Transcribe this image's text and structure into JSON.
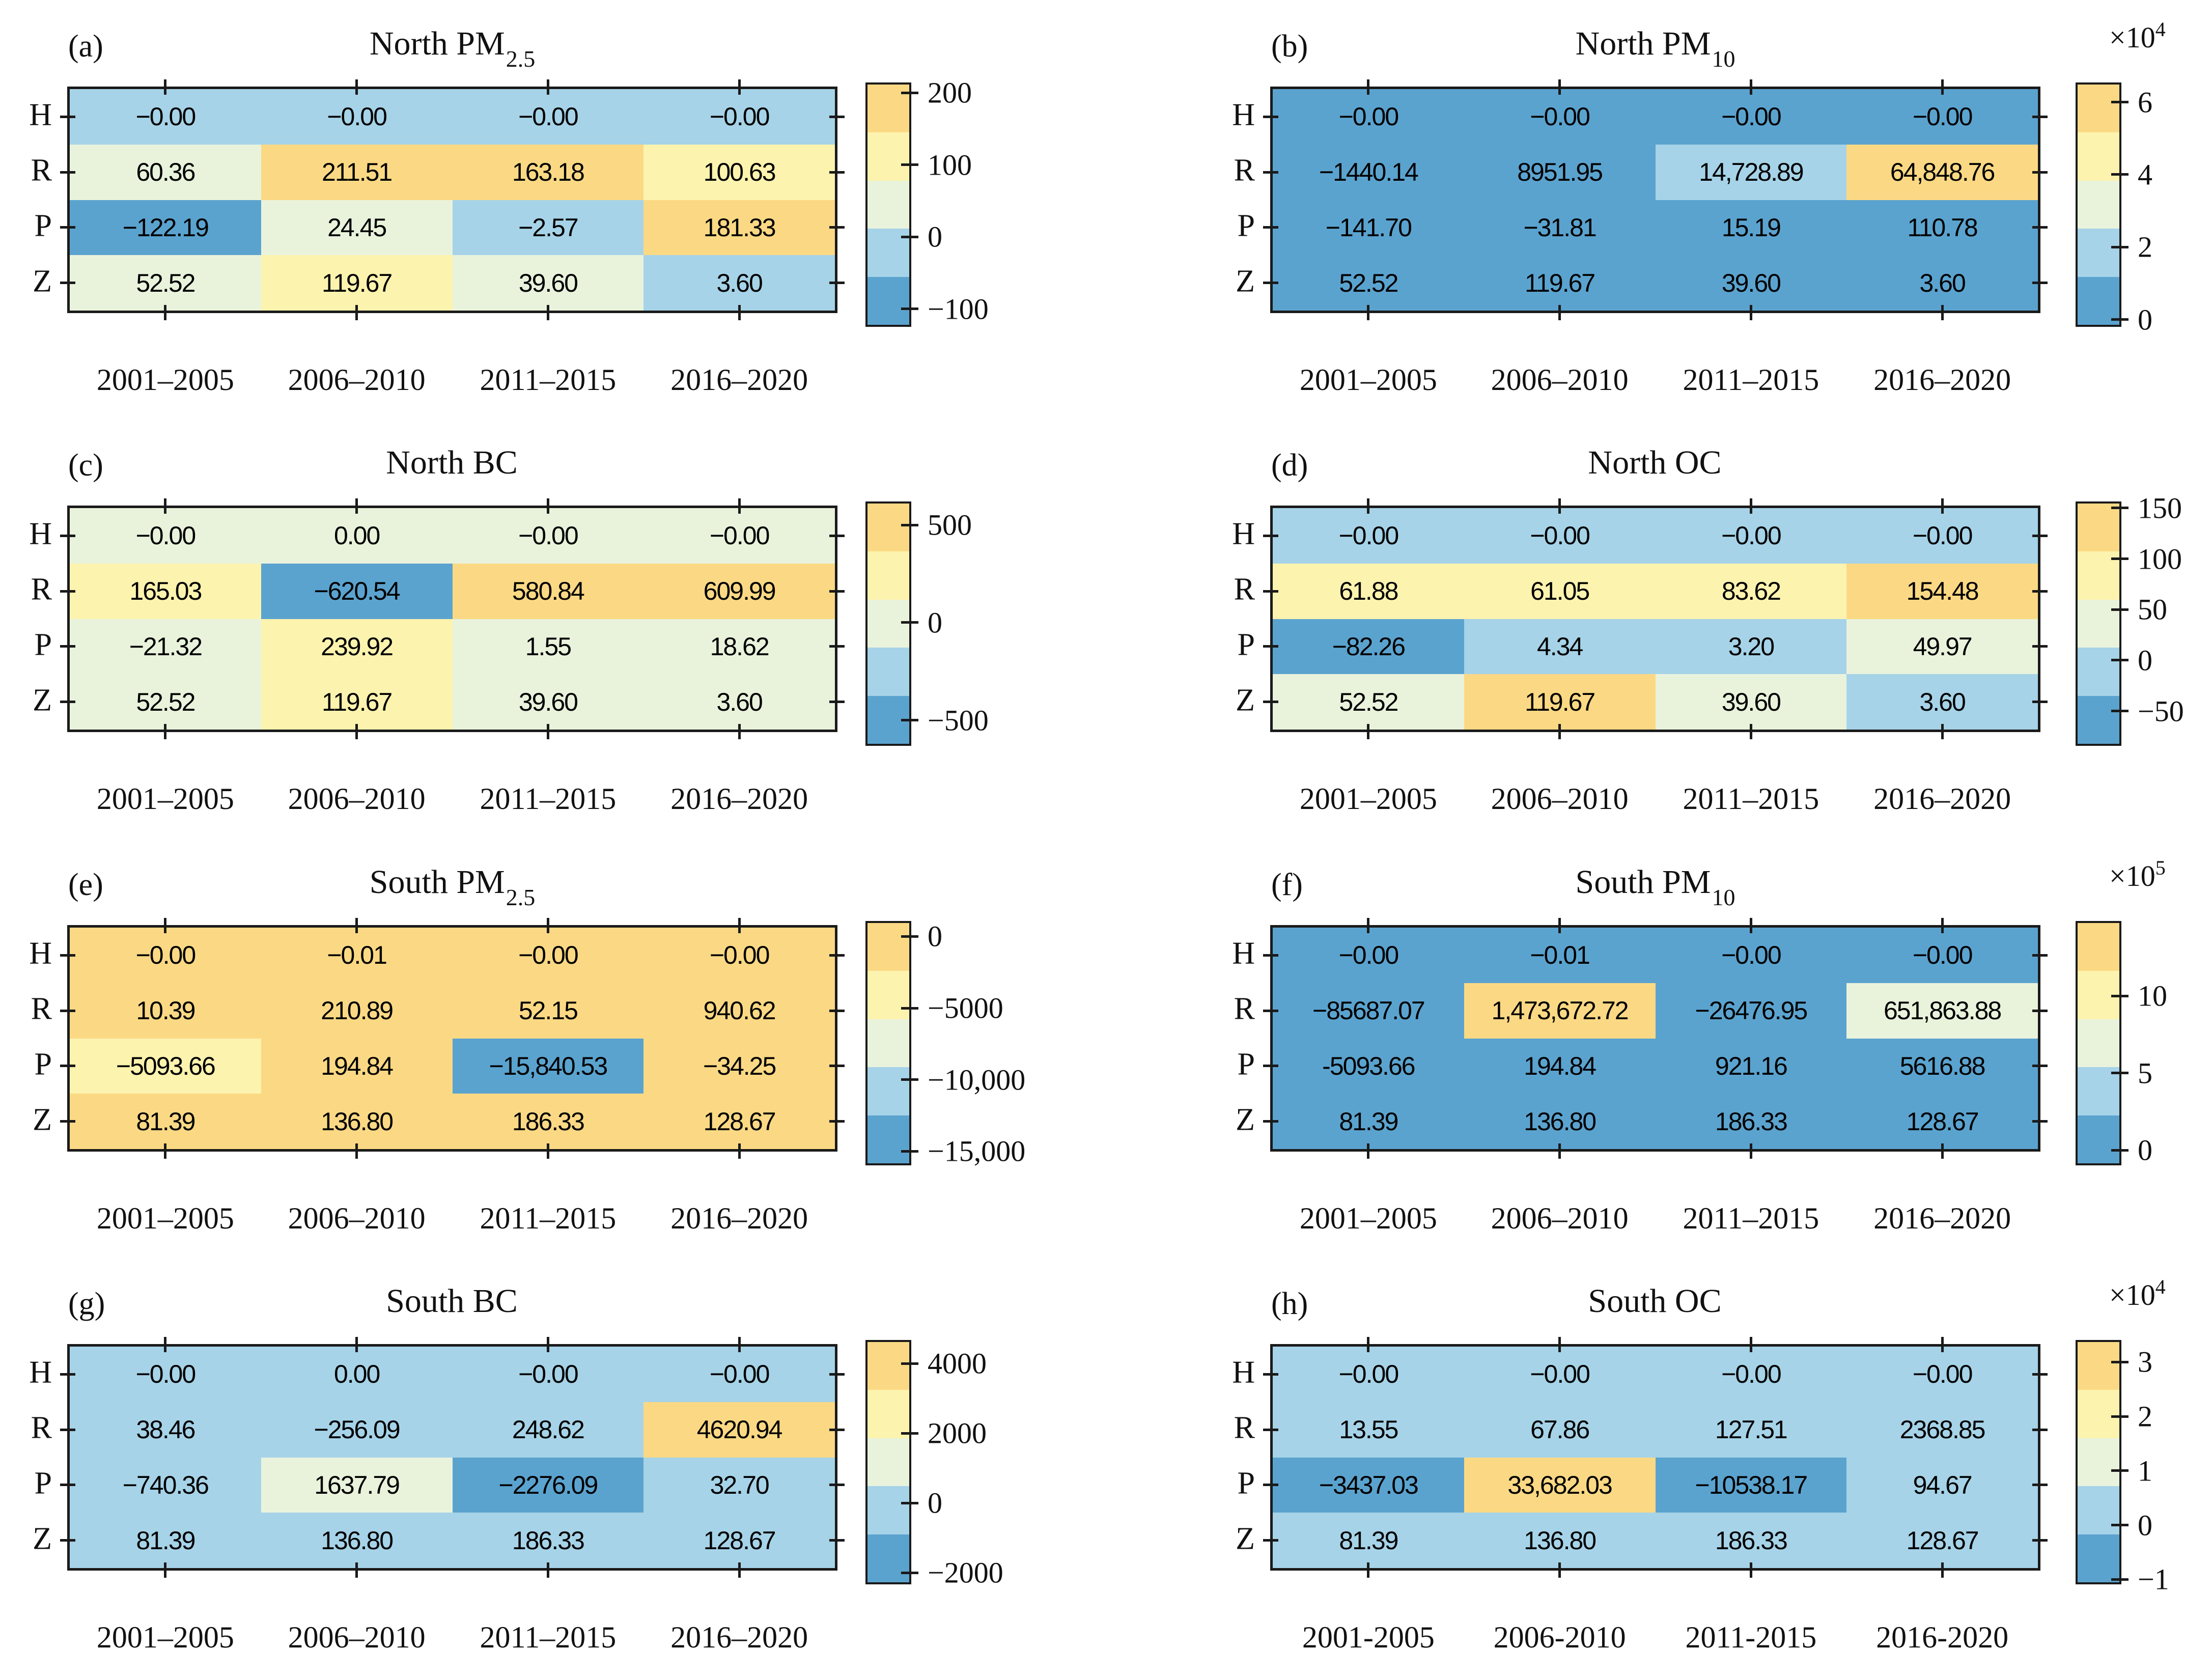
{
  "chart_data": {
    "type": "heatmap",
    "description_title": "",
    "row_labels": [
      "H",
      "R",
      "P",
      "Z"
    ],
    "panels": [
      {
        "tag": "(a)",
        "title": "North PM",
        "title_sub": "2.5",
        "col_labels": [
          "2001–2005",
          "2006–2010",
          "2011–2015",
          "2016–2020"
        ],
        "values": [
          [
            -0.001,
            -0.001,
            -0.001,
            -0.001
          ],
          [
            60.36,
            211.51,
            163.18,
            100.63
          ],
          [
            -122.19,
            24.45,
            -2.57,
            181.33
          ],
          [
            52.52,
            119.67,
            39.6,
            3.6
          ]
        ],
        "labels": [
          [
            "−0.00",
            "−0.00",
            "−0.00",
            "−0.00"
          ],
          [
            "60.36",
            "211.51",
            "163.18",
            "100.63"
          ],
          [
            "−122.19",
            "24.45",
            "−2.57",
            "181.33"
          ],
          [
            "52.52",
            "119.67",
            "39.60",
            "3.60"
          ]
        ],
        "colorbar": {
          "exponent": "",
          "exponent_sup": "",
          "ticks": [
            {
              "v": 200,
              "label": "200"
            },
            {
              "v": 100,
              "label": "100"
            },
            {
              "v": 0,
              "label": "0"
            },
            {
              "v": -100,
              "label": "−100"
            }
          ]
        }
      },
      {
        "tag": "(b)",
        "title": "North PM",
        "title_sub": "10",
        "col_labels": [
          "2001–2005",
          "2006–2010",
          "2011–2015",
          "2016–2020"
        ],
        "values": [
          [
            -0.001,
            -0.001,
            -0.001,
            -0.001
          ],
          [
            -1440.14,
            8951.95,
            14728.89,
            64848.76
          ],
          [
            -141.7,
            -31.81,
            15.19,
            110.78
          ],
          [
            52.52,
            119.67,
            39.6,
            3.6
          ]
        ],
        "labels": [
          [
            "−0.00",
            "−0.00",
            "−0.00",
            "−0.00"
          ],
          [
            "−1440.14",
            "8951.95",
            "14,728.89",
            "64,848.76"
          ],
          [
            "−141.70",
            "−31.81",
            "15.19",
            "110.78"
          ],
          [
            "52.52",
            "119.67",
            "39.60",
            "3.60"
          ]
        ],
        "colorbar": {
          "exponent": "×10",
          "exponent_sup": "4",
          "ticks": [
            {
              "v": 60000,
              "label": "6"
            },
            {
              "v": 40000,
              "label": "4"
            },
            {
              "v": 20000,
              "label": "2"
            },
            {
              "v": 0,
              "label": "0"
            }
          ]
        }
      },
      {
        "tag": "(c)",
        "title": "North BC",
        "title_sub": "",
        "col_labels": [
          "2001–2005",
          "2006–2010",
          "2011–2015",
          "2016–2020"
        ],
        "values": [
          [
            -0.001,
            0.001,
            -0.001,
            -0.001
          ],
          [
            165.03,
            -620.54,
            580.84,
            609.99
          ],
          [
            -21.32,
            239.92,
            1.55,
            18.62
          ],
          [
            52.52,
            119.67,
            39.6,
            3.6
          ]
        ],
        "labels": [
          [
            "−0.00",
            "0.00",
            "−0.00",
            "−0.00"
          ],
          [
            "165.03",
            "−620.54",
            "580.84",
            "609.99"
          ],
          [
            "−21.32",
            "239.92",
            "1.55",
            "18.62"
          ],
          [
            "52.52",
            "119.67",
            "39.60",
            "3.60"
          ]
        ],
        "colorbar": {
          "exponent": "",
          "exponent_sup": "",
          "ticks": [
            {
              "v": 500,
              "label": "500"
            },
            {
              "v": 0,
              "label": "0"
            },
            {
              "v": -500,
              "label": "−500"
            }
          ]
        }
      },
      {
        "tag": "(d)",
        "title": "North OC",
        "title_sub": "",
        "col_labels": [
          "2001–2005",
          "2006–2010",
          "2011–2015",
          "2016–2020"
        ],
        "values": [
          [
            -0.001,
            -0.001,
            -0.001,
            -0.001
          ],
          [
            61.88,
            61.05,
            83.62,
            154.48
          ],
          [
            -82.26,
            4.34,
            3.2,
            49.97
          ],
          [
            52.52,
            119.67,
            39.6,
            3.6
          ]
        ],
        "labels": [
          [
            "−0.00",
            "−0.00",
            "−0.00",
            "−0.00"
          ],
          [
            "61.88",
            "61.05",
            "83.62",
            "154.48"
          ],
          [
            "−82.26",
            "4.34",
            "3.20",
            "49.97"
          ],
          [
            "52.52",
            "119.67",
            "39.60",
            "3.60"
          ]
        ],
        "colorbar": {
          "exponent": "",
          "exponent_sup": "",
          "ticks": [
            {
              "v": 150,
              "label": "150"
            },
            {
              "v": 100,
              "label": "100"
            },
            {
              "v": 50,
              "label": "50"
            },
            {
              "v": 0,
              "label": "0"
            },
            {
              "v": -50,
              "label": "−50"
            }
          ]
        }
      },
      {
        "tag": "(e)",
        "title": "South PM",
        "title_sub": "2.5",
        "col_labels": [
          "2001–2005",
          "2006–2010",
          "2011–2015",
          "2016–2020"
        ],
        "values": [
          [
            -0.001,
            -0.01,
            -0.001,
            -0.001
          ],
          [
            10.39,
            210.89,
            52.15,
            940.62
          ],
          [
            -5093.66,
            194.84,
            -15840.53,
            -34.25
          ],
          [
            81.39,
            136.8,
            186.33,
            128.67
          ]
        ],
        "labels": [
          [
            "−0.00",
            "−0.01",
            "−0.00",
            "−0.00"
          ],
          [
            "10.39",
            "210.89",
            "52.15",
            "940.62"
          ],
          [
            "−5093.66",
            "194.84",
            "−15,840.53",
            "−34.25"
          ],
          [
            "81.39",
            "136.80",
            "186.33",
            "128.67"
          ]
        ],
        "colorbar": {
          "exponent": "",
          "exponent_sup": "",
          "ticks": [
            {
              "v": 0,
              "label": "0"
            },
            {
              "v": -5000,
              "label": "−5000"
            },
            {
              "v": -10000,
              "label": "−10,000"
            },
            {
              "v": -15000,
              "label": "−15,000"
            }
          ]
        }
      },
      {
        "tag": "(f)",
        "title": "South PM",
        "title_sub": "10",
        "col_labels": [
          "2001–2005",
          "2006–2010",
          "2011–2015",
          "2016–2020"
        ],
        "values": [
          [
            -0.001,
            -0.01,
            -0.001,
            -0.001
          ],
          [
            -85687.07,
            1473672.72,
            -26476.95,
            651863.88
          ],
          [
            -5093.66,
            194.84,
            921.16,
            5616.88
          ],
          [
            81.39,
            136.8,
            186.33,
            128.67
          ]
        ],
        "labels": [
          [
            "−0.00",
            "−0.01",
            "−0.00",
            "−0.00"
          ],
          [
            "−85687.07",
            "1,473,672.72",
            "−26476.95",
            "651,863.88"
          ],
          [
            "-5093.66",
            "194.84",
            "921.16",
            "5616.88"
          ],
          [
            "81.39",
            "136.80",
            "186.33",
            "128.67"
          ]
        ],
        "colorbar": {
          "exponent": "×10",
          "exponent_sup": "5",
          "ticks": [
            {
              "v": 1000000,
              "label": "10"
            },
            {
              "v": 500000,
              "label": "5"
            },
            {
              "v": 0,
              "label": "0"
            }
          ]
        }
      },
      {
        "tag": "(g)",
        "title": "South BC",
        "title_sub": "",
        "col_labels": [
          "2001–2005",
          "2006–2010",
          "2011–2015",
          "2016–2020"
        ],
        "values": [
          [
            -0.001,
            0.001,
            -0.001,
            -0.001
          ],
          [
            38.46,
            -256.09,
            248.62,
            4620.94
          ],
          [
            -740.36,
            1637.79,
            -2276.09,
            32.7
          ],
          [
            81.39,
            136.8,
            186.33,
            128.67
          ]
        ],
        "labels": [
          [
            "−0.00",
            "0.00",
            "−0.00",
            "−0.00"
          ],
          [
            "38.46",
            "−256.09",
            "248.62",
            "4620.94"
          ],
          [
            "−740.36",
            "1637.79",
            "−2276.09",
            "32.70"
          ],
          [
            "81.39",
            "136.80",
            "186.33",
            "128.67"
          ]
        ],
        "colorbar": {
          "exponent": "",
          "exponent_sup": "",
          "ticks": [
            {
              "v": 4000,
              "label": "4000"
            },
            {
              "v": 2000,
              "label": "2000"
            },
            {
              "v": 0,
              "label": "0"
            },
            {
              "v": -2000,
              "label": "−2000"
            }
          ]
        }
      },
      {
        "tag": "(h)",
        "title": "South OC",
        "title_sub": "",
        "col_labels": [
          "2001-2005",
          "2006-2010",
          "2011-2015",
          "2016-2020"
        ],
        "values": [
          [
            -0.001,
            -0.001,
            -0.001,
            -0.001
          ],
          [
            13.55,
            67.86,
            127.51,
            2368.85
          ],
          [
            -3437.03,
            33682.03,
            -10538.17,
            94.67
          ],
          [
            81.39,
            136.8,
            186.33,
            128.67
          ]
        ],
        "labels": [
          [
            "−0.00",
            "−0.00",
            "−0.00",
            "−0.00"
          ],
          [
            "13.55",
            "67.86",
            "127.51",
            "2368.85"
          ],
          [
            "−3437.03",
            "33,682.03",
            "−10538.17",
            "94.67"
          ],
          [
            "81.39",
            "136.80",
            "186.33",
            "128.67"
          ]
        ],
        "colorbar": {
          "exponent": "×10",
          "exponent_sup": "4",
          "ticks": [
            {
              "v": 30000,
              "label": "3"
            },
            {
              "v": 20000,
              "label": "2"
            },
            {
              "v": 10000,
              "label": "1"
            },
            {
              "v": 0,
              "label": "0"
            },
            {
              "v": -10000,
              "label": "−1"
            }
          ]
        }
      }
    ]
  },
  "style": {
    "bin_colors_low_to_high": [
      "#5BA3CF",
      "#A6D3E8",
      "#E9F3DC",
      "#FCF3AE",
      "#FBD984"
    ],
    "axis_color": "#1a1a1a",
    "text_color": "#000000",
    "background": "#ffffff"
  }
}
